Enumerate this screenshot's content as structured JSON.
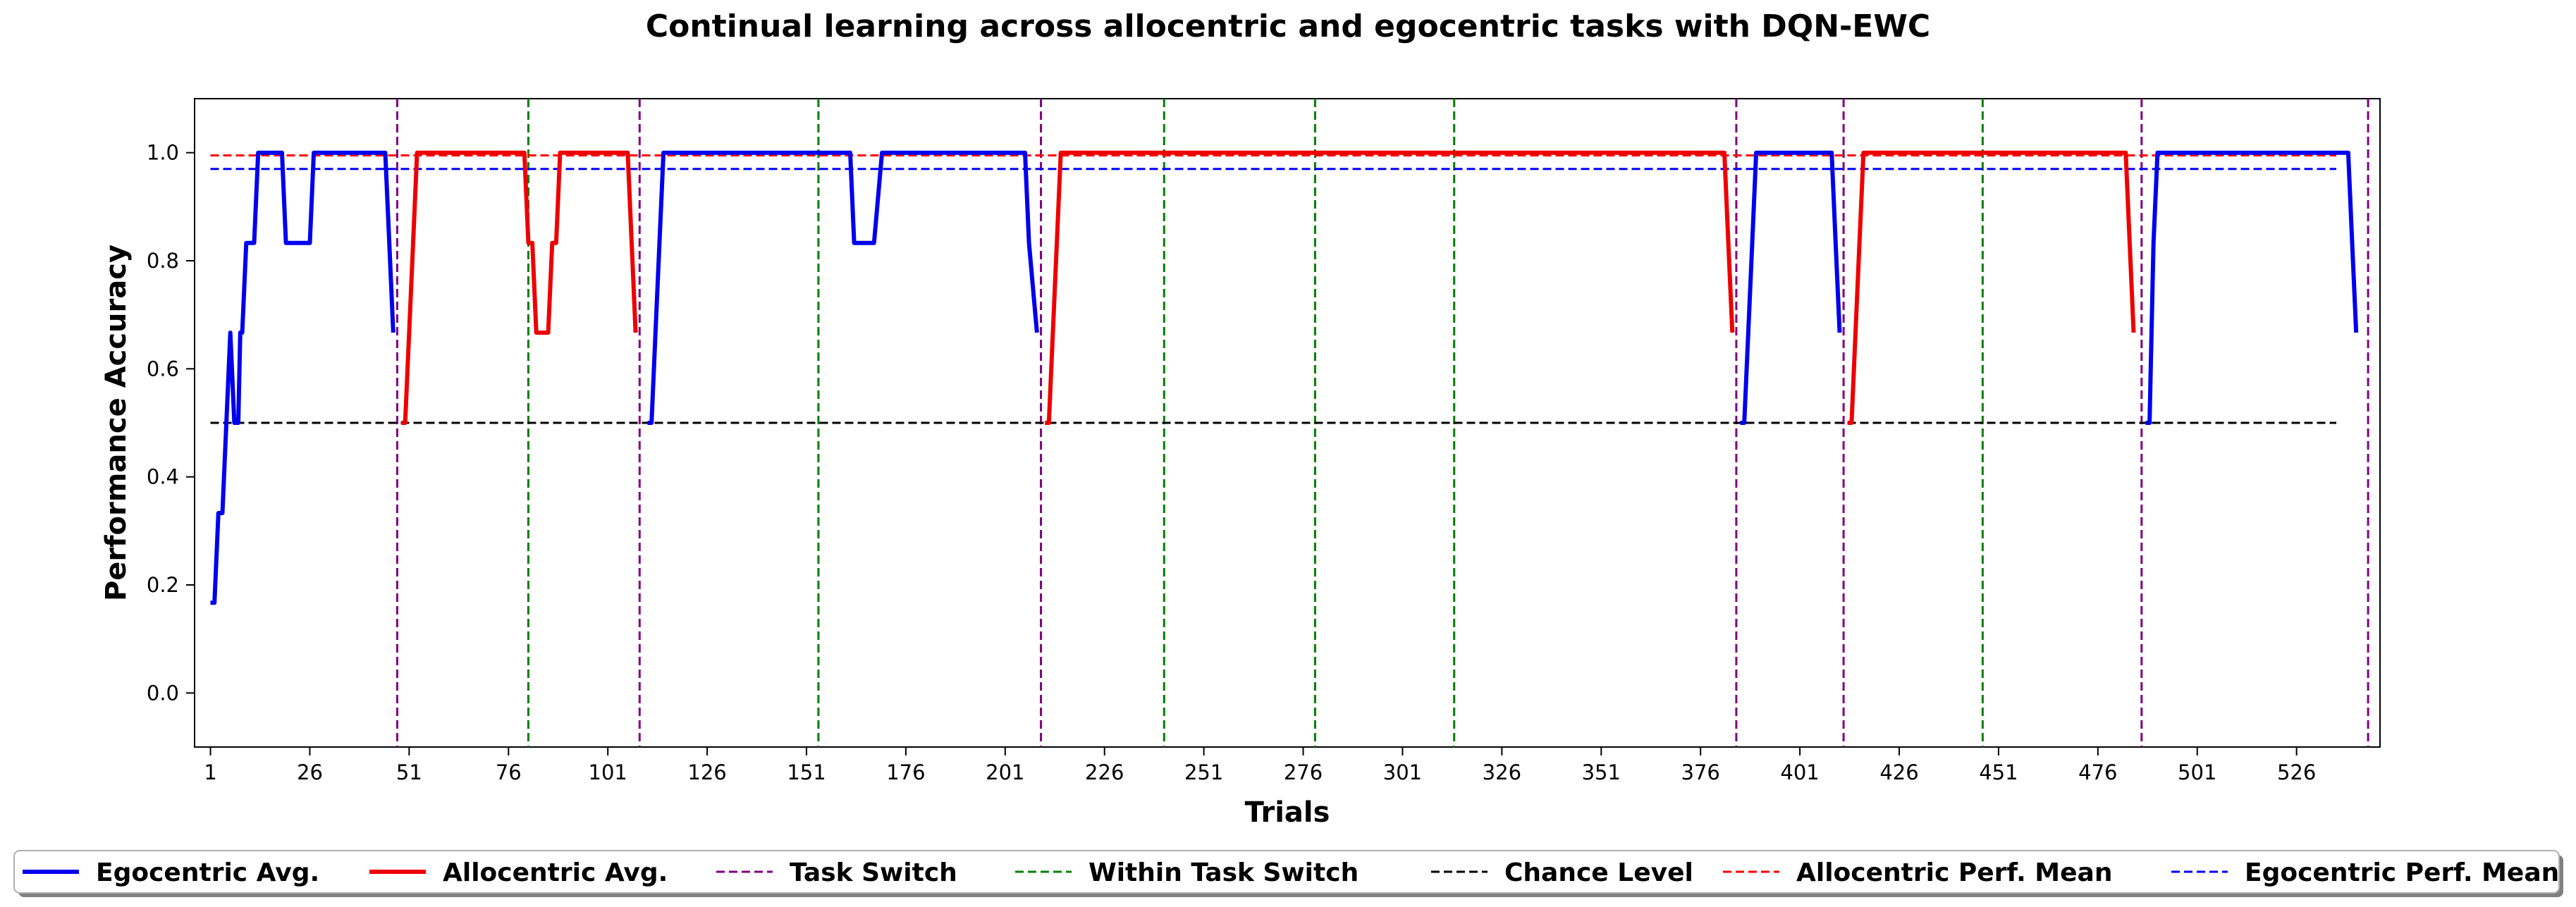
{
  "chart_data": {
    "type": "line",
    "title": "Continual learning across allocentric and egocentric tasks with DQN-EWC",
    "xlabel": "Trials",
    "ylabel": "Performance Accuracy",
    "xlim": [
      -3,
      547
    ],
    "ylim": [
      -0.1,
      1.1
    ],
    "x_ticks": [
      1,
      26,
      51,
      76,
      101,
      126,
      151,
      176,
      201,
      226,
      251,
      276,
      301,
      326,
      351,
      376,
      401,
      426,
      451,
      476,
      501,
      526
    ],
    "y_ticks": [
      0.0,
      0.2,
      0.4,
      0.6,
      0.8,
      1.0
    ],
    "y_tick_labels": [
      "0.0",
      "0.2",
      "0.4",
      "0.6",
      "0.8",
      "1.0"
    ],
    "grid": false,
    "legend_placement": "below-center",
    "series": [
      {
        "name": "Egocentric Avg.",
        "color": "#0000ee",
        "style": "solid",
        "segments": [
          [
            [
              1,
              0.167
            ],
            [
              2,
              0.167
            ],
            [
              3,
              0.333
            ],
            [
              4,
              0.333
            ],
            [
              6,
              0.667
            ],
            [
              7,
              0.5
            ],
            [
              8,
              0.5
            ],
            [
              8.5,
              0.667
            ],
            [
              9,
              0.667
            ],
            [
              10,
              0.833
            ],
            [
              11,
              0.833
            ],
            [
              12,
              0.833
            ],
            [
              13,
              1.0
            ],
            [
              19,
              1.0
            ],
            [
              20,
              0.833
            ],
            [
              24,
              0.833
            ],
            [
              26,
              0.833
            ],
            [
              27,
              1.0
            ],
            [
              45,
              1.0
            ],
            [
              46,
              0.833
            ],
            [
              47,
              0.667
            ]
          ],
          [
            [
              111,
              0.5
            ],
            [
              112,
              0.5
            ],
            [
              113,
              0.667
            ],
            [
              115,
              1.0
            ],
            [
              162,
              1.0
            ],
            [
              163,
              0.833
            ],
            [
              168,
              0.833
            ],
            [
              170,
              1.0
            ],
            [
              206,
              1.0
            ],
            [
              207,
              0.833
            ],
            [
              209,
              0.667
            ]
          ],
          [
            [
              386,
              0.5
            ],
            [
              387,
              0.5
            ],
            [
              389,
              0.833
            ],
            [
              390,
              1.0
            ],
            [
              409,
              1.0
            ],
            [
              410,
              0.833
            ],
            [
              411,
              0.667
            ]
          ],
          [
            [
              488,
              0.5
            ],
            [
              489,
              0.5
            ],
            [
              490,
              0.833
            ],
            [
              491,
              1.0
            ],
            [
              539,
              1.0
            ],
            [
              540,
              0.833
            ],
            [
              541,
              0.667
            ]
          ]
        ]
      },
      {
        "name": "Allocentric Avg.",
        "color": "#ee0000",
        "style": "solid",
        "segments": [
          [
            [
              49,
              0.5
            ],
            [
              50,
              0.5
            ],
            [
              52,
              0.833
            ],
            [
              53,
              1.0
            ],
            [
              80,
              1.0
            ],
            [
              81,
              0.833
            ],
            [
              82,
              0.833
            ],
            [
              83,
              0.667
            ],
            [
              86,
              0.667
            ],
            [
              87,
              0.833
            ],
            [
              88,
              0.833
            ],
            [
              89,
              1.0
            ],
            [
              106,
              1.0
            ],
            [
              107,
              0.833
            ],
            [
              108,
              0.667
            ]
          ],
          [
            [
              211,
              0.5
            ],
            [
              212,
              0.5
            ],
            [
              214,
              0.833
            ],
            [
              215,
              1.0
            ],
            [
              382,
              1.0
            ],
            [
              383,
              0.833
            ],
            [
              384,
              0.667
            ]
          ],
          [
            [
              413,
              0.5
            ],
            [
              414,
              0.5
            ],
            [
              416,
              0.833
            ],
            [
              417,
              1.0
            ],
            [
              483,
              1.0
            ],
            [
              484,
              0.833
            ],
            [
              485,
              0.667
            ]
          ]
        ]
      },
      {
        "name": "Chance Level",
        "color": "#000000",
        "style": "dashed",
        "segments": [
          [
            [
              1,
              0.5
            ],
            [
              536,
              0.5
            ]
          ]
        ]
      },
      {
        "name": "Allocentric Perf. Mean",
        "color": "#ff0000",
        "style": "dashed",
        "segments": [
          [
            [
              1,
              0.995
            ],
            [
              536,
              0.995
            ]
          ]
        ]
      },
      {
        "name": "Egocentric Perf. Mean",
        "color": "#0000ff",
        "style": "dashed",
        "segments": [
          [
            [
              1,
              0.97
            ],
            [
              536,
              0.97
            ]
          ]
        ]
      }
    ],
    "vertical_lines": {
      "task_switch": {
        "name": "Task Switch",
        "color": "#800080",
        "x": [
          48,
          109,
          210,
          385,
          412,
          487,
          544
        ]
      },
      "within_task_switch": {
        "name": "Within Task Switch",
        "color": "#008000",
        "x": [
          81,
          154,
          241,
          279,
          314,
          447
        ]
      }
    }
  },
  "legend": [
    {
      "label": "Egocentric Avg.",
      "color": "#0000ee",
      "style": "solid"
    },
    {
      "label": "Allocentric Avg.",
      "color": "#ee0000",
      "style": "solid"
    },
    {
      "label": "Task Switch",
      "color": "#800080",
      "style": "dashed"
    },
    {
      "label": "Within Task Switch",
      "color": "#008000",
      "style": "dashed"
    },
    {
      "label": "Chance Level",
      "color": "#000000",
      "style": "dashed"
    },
    {
      "label": "Allocentric Perf. Mean",
      "color": "#ff0000",
      "style": "dashed"
    },
    {
      "label": "Egocentric Perf. Mean",
      "color": "#0000ff",
      "style": "dashed"
    }
  ]
}
